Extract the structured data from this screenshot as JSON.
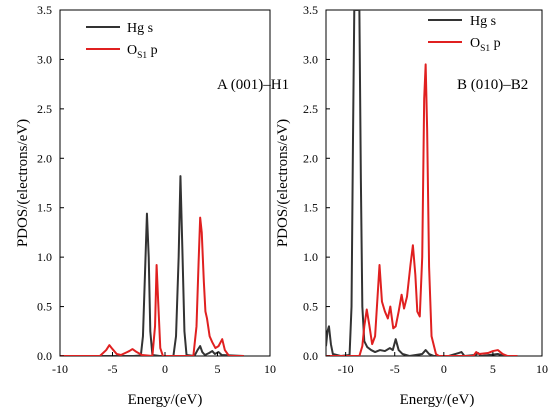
{
  "chart_data": [
    {
      "type": "line",
      "panel_label": "A (001)–H1",
      "xlabel": "Energy/(eV)",
      "ylabel": "PDOS/(electrons/eV)",
      "xlim": [
        -10,
        10
      ],
      "ylim": [
        0,
        3.5
      ],
      "xticks": [
        -10,
        -5,
        0,
        5,
        10
      ],
      "yticks": [
        0.0,
        0.5,
        1.0,
        1.5,
        2.0,
        2.5,
        3.0,
        3.5
      ],
      "legend_position": "top-left",
      "grid": false,
      "series": [
        {
          "name": "Hg s",
          "color": "#333333",
          "points": [
            [
              -10,
              0
            ],
            [
              -3,
              0
            ],
            [
              -2.3,
              0.005
            ],
            [
              -2.1,
              0.2
            ],
            [
              -1.9,
              0.85
            ],
            [
              -1.72,
              1.44
            ],
            [
              -1.55,
              1.0
            ],
            [
              -1.4,
              0.25
            ],
            [
              -1.2,
              0.01
            ],
            [
              -0.5,
              0
            ],
            [
              0.8,
              0
            ],
            [
              1.05,
              0.2
            ],
            [
              1.3,
              1.0
            ],
            [
              1.47,
              1.82
            ],
            [
              1.65,
              1.1
            ],
            [
              1.85,
              0.25
            ],
            [
              2.05,
              0.01
            ],
            [
              2.8,
              0
            ],
            [
              3.1,
              0.06
            ],
            [
              3.35,
              0.1
            ],
            [
              3.55,
              0.04
            ],
            [
              3.8,
              0.01
            ],
            [
              4.2,
              0.03
            ],
            [
              4.5,
              0.05
            ],
            [
              4.75,
              0.02
            ],
            [
              5.1,
              0.04
            ],
            [
              5.4,
              0.01
            ],
            [
              7.5,
              0
            ]
          ]
        },
        {
          "name": "O_{S1} p",
          "label_main": "O",
          "label_sub": "S1",
          "label_tail": " p",
          "color": "#e02020",
          "points": [
            [
              -10,
              0
            ],
            [
              -6.2,
              0
            ],
            [
              -5.6,
              0.06
            ],
            [
              -5.3,
              0.11
            ],
            [
              -5.0,
              0.07
            ],
            [
              -4.6,
              0.02
            ],
            [
              -4.2,
              0.01
            ],
            [
              -3.4,
              0.05
            ],
            [
              -3.1,
              0.07
            ],
            [
              -2.7,
              0.04
            ],
            [
              -2.2,
              0.01
            ],
            [
              -1.2,
              0
            ],
            [
              -0.95,
              0.3
            ],
            [
              -0.8,
              0.92
            ],
            [
              -0.65,
              0.55
            ],
            [
              -0.45,
              0.08
            ],
            [
              -0.2,
              0
            ],
            [
              2.7,
              0
            ],
            [
              3.0,
              0.3
            ],
            [
              3.2,
              0.95
            ],
            [
              3.35,
              1.4
            ],
            [
              3.5,
              1.25
            ],
            [
              3.7,
              0.75
            ],
            [
              3.85,
              0.45
            ],
            [
              4.0,
              0.38
            ],
            [
              4.25,
              0.2
            ],
            [
              4.5,
              0.14
            ],
            [
              4.8,
              0.08
            ],
            [
              5.1,
              0.1
            ],
            [
              5.45,
              0.17
            ],
            [
              5.7,
              0.06
            ],
            [
              6.1,
              0
            ],
            [
              7.5,
              0
            ]
          ]
        }
      ]
    },
    {
      "type": "line",
      "panel_label": "B (010)–B2",
      "xlabel": "Energy/(eV)",
      "ylabel": "PDOS/(electrons/eV)",
      "xlim": [
        -12,
        10
      ],
      "ylim": [
        0,
        3.5
      ],
      "xticks": [
        -10,
        -5,
        0,
        5,
        10
      ],
      "yticks": [
        0.0,
        0.5,
        1.0,
        1.5,
        2.0,
        2.5,
        3.0,
        3.5
      ],
      "legend_position": "top-right",
      "grid": false,
      "series": [
        {
          "name": "Hg s",
          "color": "#333333",
          "points": [
            [
              -12,
              0.1
            ],
            [
              -11.85,
              0.25
            ],
            [
              -11.7,
              0.3
            ],
            [
              -11.5,
              0.12
            ],
            [
              -11.3,
              0.02
            ],
            [
              -10.5,
              0
            ],
            [
              -9.6,
              0.01
            ],
            [
              -9.4,
              0.5
            ],
            [
              -9.25,
              2.2
            ],
            [
              -9.12,
              3.5
            ],
            [
              -8.95,
              3.5
            ],
            [
              -8.75,
              3.5
            ],
            [
              -8.6,
              3.5
            ],
            [
              -8.45,
              1.8
            ],
            [
              -8.3,
              0.5
            ],
            [
              -8.1,
              0.15
            ],
            [
              -7.8,
              0.09
            ],
            [
              -7.4,
              0.06
            ],
            [
              -7.0,
              0.04
            ],
            [
              -6.5,
              0.06
            ],
            [
              -6.0,
              0.05
            ],
            [
              -5.5,
              0.08
            ],
            [
              -5.2,
              0.06
            ],
            [
              -4.9,
              0.17
            ],
            [
              -4.6,
              0.06
            ],
            [
              -4.2,
              0.02
            ],
            [
              -3.5,
              0
            ],
            [
              -2.2,
              0.02
            ],
            [
              -1.85,
              0.06
            ],
            [
              -1.5,
              0.02
            ],
            [
              -1.0,
              0
            ],
            [
              0.5,
              0
            ],
            [
              1.5,
              0.03
            ],
            [
              1.8,
              0.04
            ],
            [
              2.1,
              0
            ],
            [
              3.2,
              0.01
            ],
            [
              3.5,
              0.03
            ],
            [
              3.8,
              0
            ],
            [
              5.5,
              0.02
            ],
            [
              6.2,
              0
            ],
            [
              7.5,
              0
            ]
          ]
        },
        {
          "name": "O_{S1} p",
          "label_main": "O",
          "label_sub": "S1",
          "label_tail": " p",
          "color": "#e02020",
          "points": [
            [
              -12,
              0
            ],
            [
              -8.6,
              0
            ],
            [
              -8.3,
              0.1
            ],
            [
              -8.1,
              0.3
            ],
            [
              -7.85,
              0.47
            ],
            [
              -7.6,
              0.32
            ],
            [
              -7.3,
              0.12
            ],
            [
              -7.0,
              0.2
            ],
            [
              -6.75,
              0.6
            ],
            [
              -6.55,
              0.92
            ],
            [
              -6.3,
              0.55
            ],
            [
              -6.0,
              0.45
            ],
            [
              -5.7,
              0.38
            ],
            [
              -5.45,
              0.5
            ],
            [
              -5.15,
              0.28
            ],
            [
              -4.9,
              0.3
            ],
            [
              -4.6,
              0.45
            ],
            [
              -4.3,
              0.62
            ],
            [
              -4.05,
              0.48
            ],
            [
              -3.75,
              0.6
            ],
            [
              -3.4,
              0.92
            ],
            [
              -3.15,
              1.12
            ],
            [
              -2.9,
              0.82
            ],
            [
              -2.7,
              0.45
            ],
            [
              -2.45,
              0.4
            ],
            [
              -2.2,
              1.0
            ],
            [
              -2.0,
              2.6
            ],
            [
              -1.85,
              2.95
            ],
            [
              -1.7,
              2.3
            ],
            [
              -1.5,
              0.9
            ],
            [
              -1.25,
              0.2
            ],
            [
              -1.0,
              0.1
            ],
            [
              -0.8,
              0.02
            ],
            [
              -0.5,
              0
            ],
            [
              3.0,
              0
            ],
            [
              3.3,
              0.04
            ],
            [
              3.6,
              0.02
            ],
            [
              4.5,
              0.03
            ],
            [
              5.0,
              0.05
            ],
            [
              5.5,
              0.06
            ],
            [
              6.0,
              0.02
            ],
            [
              6.5,
              0
            ],
            [
              7.5,
              0
            ]
          ]
        }
      ]
    }
  ]
}
